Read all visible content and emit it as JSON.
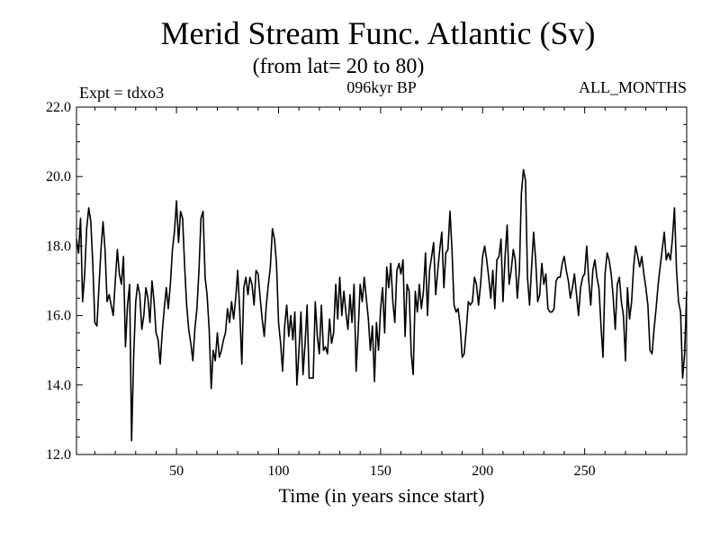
{
  "chart_data": {
    "type": "line",
    "title": "Merid Stream Func. Atlantic (Sv)",
    "subtitle": "(from lat= 20 to 80)",
    "annotations": {
      "left": "Expt = tdxo3",
      "center": "096kyr BP",
      "right": "ALL_MONTHS"
    },
    "xlabel": "Time (in years since start)",
    "ylabel": "",
    "xlim": [
      1,
      300
    ],
    "ylim": [
      12.0,
      22.0
    ],
    "x_ticks": [
      50,
      100,
      150,
      200,
      250
    ],
    "x_tick_labels": [
      "50",
      "100",
      "150",
      "200",
      "250"
    ],
    "y_ticks": [
      12,
      14,
      16,
      18,
      20,
      22
    ],
    "y_tick_labels": [
      "12.0",
      "14.0",
      "16.0",
      "18.0",
      "20.0",
      "22.0"
    ],
    "grid": false,
    "legend": "none",
    "series": [
      {
        "color": "#000000",
        "x_start": 1,
        "x_step": 1,
        "values": [
          18.2,
          17.8,
          18.8,
          16.4,
          17.2,
          18.5,
          19.1,
          18.7,
          17.5,
          15.8,
          15.7,
          16.8,
          17.9,
          18.7,
          17.9,
          16.4,
          16.6,
          16.3,
          16.0,
          17.0,
          17.9,
          17.2,
          16.9,
          17.7,
          15.1,
          16.3,
          16.9,
          12.4,
          14.8,
          16.4,
          16.9,
          16.6,
          15.6,
          16.0,
          16.8,
          16.5,
          15.8,
          17.0,
          16.4,
          15.5,
          15.3,
          14.6,
          15.5,
          16.2,
          16.8,
          16.2,
          16.9,
          17.9,
          18.4,
          19.3,
          18.1,
          19.0,
          18.8,
          17.4,
          16.3,
          15.6,
          15.2,
          14.7,
          15.6,
          16.2,
          17.3,
          18.8,
          19.0,
          17.1,
          16.6,
          15.6,
          13.9,
          15.0,
          14.7,
          15.5,
          14.8,
          15.0,
          15.3,
          15.5,
          16.2,
          15.8,
          16.4,
          15.9,
          16.5,
          17.3,
          16.1,
          14.6,
          16.8,
          17.1,
          16.6,
          17.1,
          16.9,
          16.3,
          17.3,
          17.2,
          16.5,
          15.9,
          15.4,
          16.3,
          16.9,
          17.4,
          18.5,
          18.2,
          17.5,
          15.8,
          15.2,
          14.4,
          15.7,
          16.3,
          15.4,
          16.0,
          15.3,
          16.1,
          14.0,
          15.0,
          16.1,
          14.3,
          15.2,
          16.3,
          14.2,
          14.2,
          14.2,
          16.4,
          15.4,
          14.9,
          16.3,
          15.0,
          15.1,
          14.9,
          15.9,
          15.2,
          15.5,
          16.9,
          15.9,
          17.1,
          16.0,
          16.7,
          16.1,
          15.6,
          16.6,
          15.8,
          16.9,
          14.4,
          15.5,
          16.9,
          16.4,
          17.1,
          16.5,
          15.9,
          15.0,
          15.7,
          14.1,
          15.8,
          15.0,
          16.2,
          16.8,
          15.5,
          17.4,
          16.8,
          17.5,
          16.4,
          15.8,
          17.3,
          17.5,
          17.2,
          17.6,
          15.4,
          16.9,
          16.7,
          14.9,
          14.3,
          16.7,
          16.1,
          16.9,
          16.2,
          16.7,
          17.8,
          16.0,
          17.3,
          17.7,
          18.1,
          16.6,
          17.3,
          17.9,
          18.4,
          16.8,
          17.8,
          17.9,
          19.0,
          17.9,
          16.3,
          16.1,
          16.2,
          15.7,
          14.8,
          14.9,
          15.6,
          16.4,
          16.3,
          16.4,
          17.1,
          16.9,
          16.3,
          16.9,
          17.7,
          18.0,
          17.6,
          17.1,
          16.5,
          17.3,
          16.2,
          17.6,
          17.7,
          18.2,
          16.4,
          17.7,
          18.6,
          16.9,
          17.3,
          17.9,
          17.6,
          16.5,
          17.3,
          19.5,
          20.2,
          19.9,
          17.1,
          16.3,
          17.4,
          18.4,
          17.6,
          16.4,
          16.6,
          17.5,
          16.9,
          17.2,
          16.2,
          16.1,
          16.1,
          16.2,
          17.0,
          17.1,
          17.1,
          17.5,
          17.7,
          17.3,
          17.0,
          16.5,
          16.8,
          17.2,
          16.6,
          16.0,
          16.8,
          17.1,
          17.2,
          18.0,
          17.0,
          16.3,
          17.3,
          17.6,
          17.1,
          16.8,
          15.7,
          14.8,
          17.2,
          17.8,
          17.6,
          17.2,
          16.5,
          15.6,
          16.9,
          17.1,
          16.4,
          16.0,
          14.7,
          16.8,
          15.9,
          16.4,
          17.4,
          18.0,
          17.7,
          17.4,
          17.7,
          17.2,
          16.8,
          16.3,
          15.0,
          14.9,
          15.6,
          16.2,
          16.9,
          17.4,
          17.9,
          18.4,
          17.6,
          17.8,
          17.6,
          18.2,
          19.1,
          17.3,
          16.4,
          16.1,
          14.2,
          14.9,
          16.7
        ]
      }
    ]
  }
}
